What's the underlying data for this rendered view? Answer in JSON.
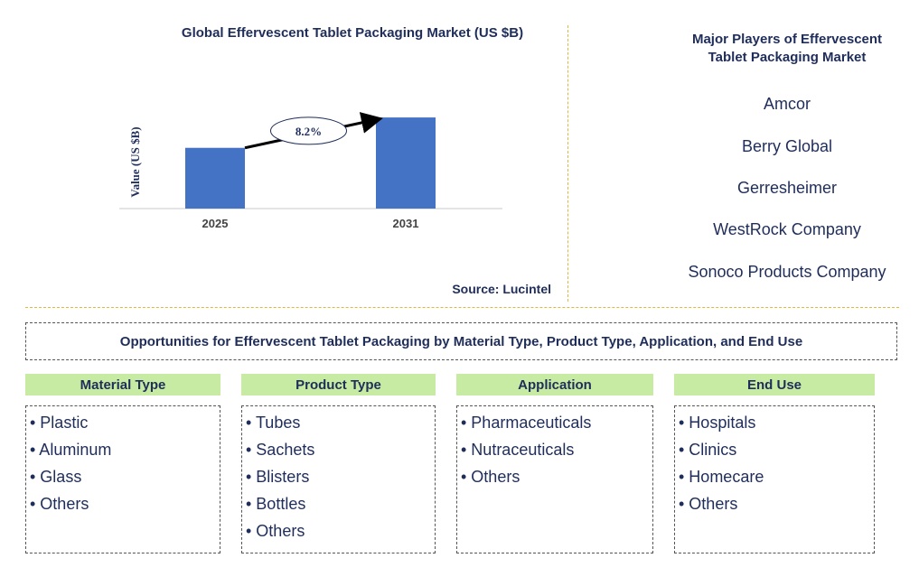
{
  "chart_data": {
    "type": "bar",
    "title": "Global Effervescent Tablet Packaging Market (US $B)",
    "ylabel": "Value (US $B)",
    "categories": [
      "2025",
      "2031"
    ],
    "values": [
      2.0,
      3.0
    ],
    "ylim": [
      0,
      3.3
    ],
    "annotation": "8.2%",
    "bar_color": "#4472c4",
    "grid": false,
    "source": "Source: Lucintel"
  },
  "players": {
    "title_line1": "Major Players of Effervescent",
    "title_line2": "Tablet Packaging Market",
    "items": [
      "Amcor",
      "Berry Global",
      "Gerresheimer",
      "WestRock Company",
      "Sonoco Products Company"
    ]
  },
  "opportunities": {
    "title": "Opportunities for Effervescent Tablet Packaging by Material Type, Product Type, Application, and End Use"
  },
  "categories": [
    {
      "header": "Material Type",
      "items": [
        "• Plastic",
        "• Aluminum",
        "• Glass",
        "• Others"
      ]
    },
    {
      "header": "Product Type",
      "items": [
        "• Tubes",
        "• Sachets",
        "• Blisters",
        "• Bottles",
        "• Others"
      ]
    },
    {
      "header": "Application",
      "items": [
        "• Pharmaceuticals",
        "• Nutraceuticals",
        "• Others"
      ]
    },
    {
      "header": "End Use",
      "items": [
        "• Hospitals",
        "• Clinics",
        "• Homecare",
        "• Others"
      ]
    }
  ],
  "colors": {
    "text": "#1f2d5a",
    "header_bg": "#c7eba3",
    "separator": "#e0b840"
  }
}
